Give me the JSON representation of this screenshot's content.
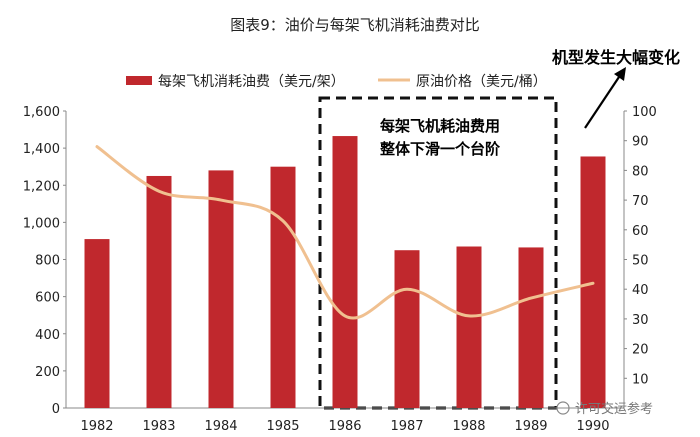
{
  "chart_data": {
    "type": "bar+line",
    "title": "图表9：油价与每架飞机消耗油费对比",
    "categories": [
      "1982",
      "1983",
      "1984",
      "1985",
      "1986",
      "1987",
      "1988",
      "1989",
      "1990"
    ],
    "series": [
      {
        "name": "每架飞机消耗油费（美元/架）",
        "type": "bar",
        "axis": "left",
        "color": "#c0282d",
        "values": [
          910,
          1250,
          1280,
          1300,
          1465,
          850,
          870,
          865,
          1355
        ]
      },
      {
        "name": "原油价格（美元/桶）",
        "type": "line",
        "axis": "right",
        "color": "#f0c090",
        "values": [
          88,
          73,
          70,
          63,
          31,
          40,
          31,
          37,
          42
        ]
      }
    ],
    "y_left": {
      "min": 0,
      "max": 1600,
      "ticks": [
        "0",
        "200",
        "400",
        "600",
        "800",
        "1,000",
        "1,200",
        "1,400",
        "1,600"
      ]
    },
    "y_right": {
      "min": 0,
      "max": 100,
      "ticks": [
        "10",
        "20",
        "30",
        "40",
        "50",
        "60",
        "70",
        "80",
        "90",
        "100"
      ]
    },
    "grid": false,
    "legend_position": "top",
    "annotations": {
      "box_text_line1": "每架飞机耗油费用",
      "box_text_line2": "整体下滑一个台阶",
      "arrow_text": "机型发生大幅变化"
    },
    "watermark": "许可交运参考"
  }
}
